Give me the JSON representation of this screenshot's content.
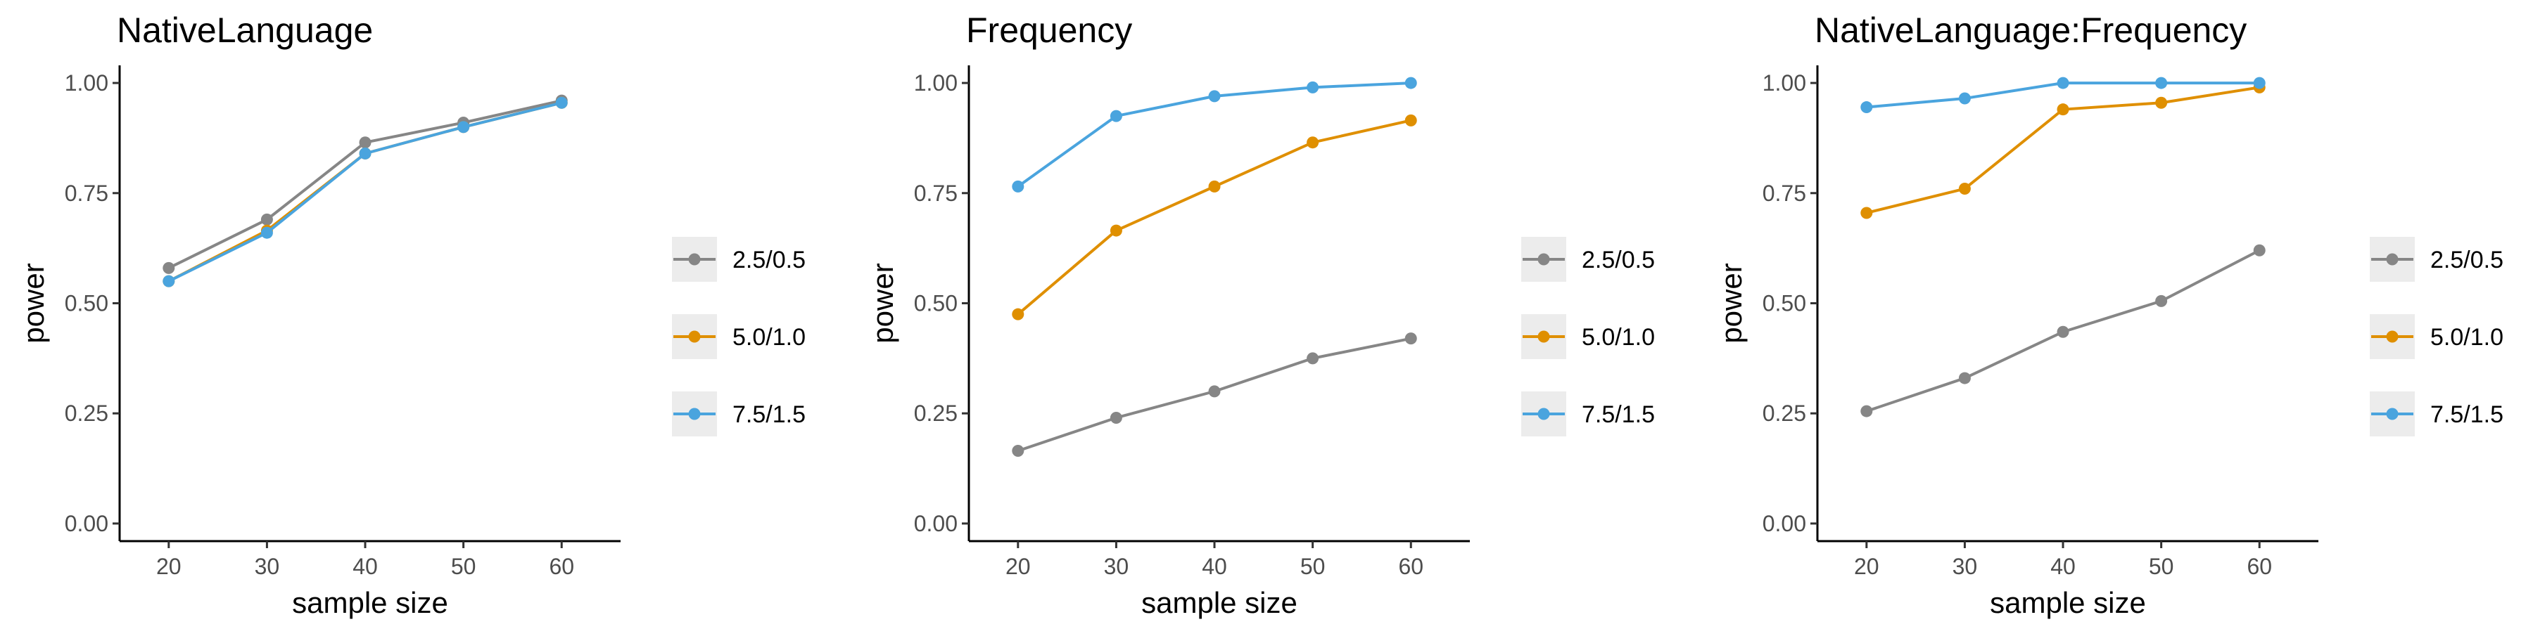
{
  "chart_data": [
    {
      "type": "line",
      "title": "NativeLanguage",
      "xlabel": "sample size",
      "ylabel": "power",
      "x": [
        20,
        30,
        40,
        50,
        60
      ],
      "xticks": [
        "20",
        "30",
        "40",
        "50",
        "60"
      ],
      "yticks": [
        "0.00",
        "0.25",
        "0.50",
        "0.75",
        "1.00"
      ],
      "xlim": [
        15,
        66
      ],
      "ylim": [
        -0.04,
        1.04
      ],
      "grid": false,
      "legend_position": "right",
      "series": [
        {
          "name": "2.5/0.5",
          "color": "#868686",
          "values": [
            0.58,
            0.69,
            0.865,
            0.91,
            0.96
          ]
        },
        {
          "name": "5.0/1.0",
          "color": "#DF8F00",
          "values": [
            0.55,
            0.665,
            0.84,
            0.9,
            0.955
          ]
        },
        {
          "name": "7.5/1.5",
          "color": "#4AA4DE",
          "values": [
            0.55,
            0.66,
            0.84,
            0.9,
            0.955
          ]
        }
      ]
    },
    {
      "type": "line",
      "title": "Frequency",
      "xlabel": "sample size",
      "ylabel": "power",
      "x": [
        20,
        30,
        40,
        50,
        60
      ],
      "xticks": [
        "20",
        "30",
        "40",
        "50",
        "60"
      ],
      "yticks": [
        "0.00",
        "0.25",
        "0.50",
        "0.75",
        "1.00"
      ],
      "xlim": [
        15,
        66
      ],
      "ylim": [
        -0.04,
        1.04
      ],
      "grid": false,
      "legend_position": "right",
      "series": [
        {
          "name": "2.5/0.5",
          "color": "#868686",
          "values": [
            0.165,
            0.24,
            0.3,
            0.375,
            0.42
          ]
        },
        {
          "name": "5.0/1.0",
          "color": "#DF8F00",
          "values": [
            0.475,
            0.665,
            0.765,
            0.865,
            0.915
          ]
        },
        {
          "name": "7.5/1.5",
          "color": "#4AA4DE",
          "values": [
            0.765,
            0.925,
            0.97,
            0.99,
            1.0
          ]
        }
      ]
    },
    {
      "type": "line",
      "title": "NativeLanguage:Frequency",
      "xlabel": "sample size",
      "ylabel": "power",
      "x": [
        20,
        30,
        40,
        50,
        60
      ],
      "xticks": [
        "20",
        "30",
        "40",
        "50",
        "60"
      ],
      "yticks": [
        "0.00",
        "0.25",
        "0.50",
        "0.75",
        "1.00"
      ],
      "xlim": [
        15,
        66
      ],
      "ylim": [
        -0.04,
        1.04
      ],
      "grid": false,
      "legend_position": "right",
      "series": [
        {
          "name": "2.5/0.5",
          "color": "#868686",
          "values": [
            0.255,
            0.33,
            0.435,
            0.505,
            0.62
          ]
        },
        {
          "name": "5.0/1.0",
          "color": "#DF8F00",
          "values": [
            0.705,
            0.76,
            0.94,
            0.955,
            0.99
          ]
        },
        {
          "name": "7.5/1.5",
          "color": "#4AA4DE",
          "values": [
            0.945,
            0.965,
            1.0,
            1.0,
            1.0
          ]
        }
      ]
    }
  ]
}
